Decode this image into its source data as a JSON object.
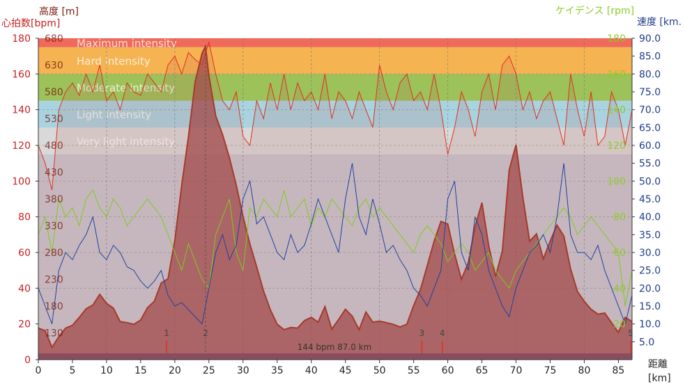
{
  "chart_data": {
    "type": "area",
    "x_axis": {
      "label": "距離",
      "unit": "[km]",
      "range": [
        0,
        87
      ],
      "ticks": [
        "0",
        "5",
        "10",
        "15",
        "20",
        "25",
        "30",
        "35",
        "40",
        "45",
        "50",
        "55",
        "60",
        "65",
        "70",
        "75",
        "80",
        "85"
      ]
    },
    "left_axes": {
      "heart_rate": {
        "label": "心拍数",
        "unit": "[bpm]",
        "range": [
          0,
          180
        ],
        "ticks": [
          "0",
          "20",
          "40",
          "60",
          "80",
          "100",
          "120",
          "140",
          "160",
          "180"
        ]
      },
      "altitude": {
        "label": "高度",
        "unit": "[m]",
        "range": [
          80,
          680
        ],
        "ticks": [
          "130",
          "180",
          "230",
          "280",
          "330",
          "380",
          "430",
          "480",
          "530",
          "580",
          "630",
          "680"
        ]
      }
    },
    "right_axes": {
      "cadence": {
        "label": "ケイデンス",
        "unit": "[rpm]",
        "range": [
          0,
          180
        ],
        "ticks": [
          "20",
          "40",
          "60",
          "80",
          "100",
          "120",
          "140",
          "160",
          "180"
        ]
      },
      "speed": {
        "label": "速度",
        "unit": "[km.",
        "range": [
          0,
          90
        ],
        "ticks": [
          "5.0",
          "10.0",
          "15.0",
          "20.0",
          "25.0",
          "30.0",
          "35.0",
          "40.0",
          "45.0",
          "50.0",
          "55.0",
          "60.0",
          "65.0",
          "70.0",
          "75.0",
          "80.0",
          "85.0",
          "90.0"
        ]
      }
    },
    "zones": [
      {
        "name": "Maximum intensity",
        "from": 175,
        "to": 180,
        "color": "#ef6a5a"
      },
      {
        "name": "Hard intensity",
        "from": 160,
        "to": 175,
        "color": "#f5b352"
      },
      {
        "name": "Moderate intensity",
        "from": 145,
        "to": 160,
        "color": "#9dc25a"
      },
      {
        "name": "Light intensity",
        "from": 130,
        "to": 145,
        "color": "#a9d3df"
      },
      {
        "name": "Very light intensity",
        "from": 115,
        "to": 130,
        "color": "#d9d9d9"
      }
    ],
    "summary": "144 bpm 87.0 km",
    "markers": [
      {
        "label": "1",
        "x": 18.8
      },
      {
        "label": "2",
        "x": 24.5
      },
      {
        "label": "3",
        "x": 56.2
      },
      {
        "label": "4",
        "x": 59.2
      },
      {
        "label": "5",
        "x": 87.0
      }
    ],
    "series": [
      {
        "name": "高度",
        "color": "#a23a2a",
        "x": [
          0,
          1,
          2,
          3,
          4,
          5,
          6,
          7,
          8,
          9,
          10,
          11,
          12,
          13,
          14,
          15,
          16,
          17,
          18,
          19,
          20,
          21,
          22,
          23,
          24,
          24.5,
          25,
          26,
          27,
          28,
          29,
          30,
          31,
          32,
          33,
          34,
          35,
          36,
          37,
          38,
          39,
          40,
          41,
          42,
          43,
          44,
          45,
          46,
          47,
          48,
          49,
          50,
          51,
          52,
          53,
          54,
          55,
          56,
          57,
          58,
          59,
          60,
          61,
          62,
          63,
          64,
          65,
          66,
          67,
          68,
          69,
          70,
          71,
          72,
          73,
          74,
          75,
          76,
          77,
          78,
          79,
          80,
          81,
          82,
          83,
          84,
          85,
          86,
          87
        ],
        "y": [
          139,
          134,
          103,
          123,
          139,
          144,
          159,
          175,
          182,
          202,
          185,
          176,
          151,
          149,
          146,
          154,
          177,
          189,
          223,
          231,
          303,
          405,
          496,
          600,
          652,
          665,
          610,
          535,
          500,
          457,
          406,
          347,
          296,
          253,
          208,
          173,
          146,
          136,
          140,
          139,
          153,
          159,
          150,
          179,
          137,
          155,
          174,
          161,
          136,
          169,
          150,
          152,
          149,
          146,
          141,
          146,
          181,
          211,
          256,
          301,
          338,
          333,
          277,
          230,
          261,
          329,
          373,
          293,
          235,
          283,
          434,
          481,
          383,
          301,
          315,
          268,
          301,
          331,
          311,
          249,
          207,
          189,
          174,
          165,
          167,
          149,
          131,
          159,
          151
        ]
      },
      {
        "name": "心拍数",
        "color": "#e03020",
        "x": [
          0,
          1,
          2,
          3,
          4,
          5,
          6,
          7,
          8,
          9,
          10,
          11,
          12,
          13,
          14,
          15,
          16,
          17,
          18,
          19,
          20,
          21,
          22,
          23,
          24,
          25,
          26,
          27,
          28,
          29,
          30,
          31,
          32,
          33,
          34,
          35,
          36,
          37,
          38,
          39,
          40,
          41,
          42,
          43,
          44,
          45,
          46,
          47,
          48,
          49,
          50,
          51,
          52,
          53,
          54,
          55,
          56,
          57,
          58,
          59,
          60,
          61,
          62,
          63,
          64,
          65,
          66,
          67,
          68,
          69,
          70,
          71,
          72,
          73,
          74,
          75,
          76,
          77,
          78,
          79,
          80,
          81,
          82,
          83,
          84,
          85,
          86,
          87
        ],
        "y": [
          120,
          110,
          95,
          140,
          150,
          155,
          148,
          160,
          150,
          165,
          145,
          150,
          140,
          155,
          150,
          148,
          160,
          155,
          150,
          165,
          170,
          160,
          172,
          168,
          165,
          178,
          160,
          145,
          140,
          150,
          125,
          120,
          145,
          135,
          155,
          140,
          160,
          140,
          155,
          145,
          150,
          140,
          160,
          135,
          150,
          145,
          135,
          150,
          140,
          130,
          165,
          150,
          140,
          155,
          160,
          145,
          150,
          140,
          160,
          140,
          115,
          130,
          150,
          140,
          125,
          150,
          160,
          140,
          165,
          170,
          160,
          140,
          150,
          135,
          145,
          150,
          135,
          120,
          160,
          140,
          125,
          150,
          120,
          125,
          150,
          140,
          120,
          140
        ]
      },
      {
        "name": "ケイデンス",
        "color": "#7ecb20",
        "x": [
          0,
          1,
          2,
          3,
          4,
          5,
          6,
          7,
          8,
          9,
          10,
          11,
          12,
          13,
          14,
          15,
          16,
          17,
          18,
          19,
          20,
          21,
          22,
          23,
          24,
          25,
          26,
          27,
          28,
          29,
          30,
          31,
          32,
          33,
          34,
          35,
          36,
          37,
          38,
          39,
          40,
          41,
          42,
          43,
          44,
          45,
          46,
          47,
          48,
          49,
          50,
          51,
          52,
          53,
          54,
          55,
          56,
          57,
          58,
          59,
          60,
          61,
          62,
          63,
          64,
          65,
          66,
          67,
          68,
          69,
          70,
          71,
          72,
          73,
          74,
          75,
          76,
          77,
          78,
          79,
          80,
          81,
          82,
          83,
          84,
          85,
          86,
          87
        ],
        "y": [
          70,
          80,
          60,
          90,
          80,
          85,
          75,
          90,
          95,
          85,
          80,
          90,
          85,
          75,
          80,
          85,
          90,
          85,
          80,
          70,
          60,
          50,
          65,
          55,
          45,
          40,
          70,
          80,
          90,
          60,
          50,
          85,
          80,
          90,
          85,
          80,
          95,
          80,
          85,
          90,
          75,
          85,
          80,
          90,
          85,
          80,
          75,
          85,
          90,
          80,
          85,
          80,
          75,
          70,
          65,
          60,
          70,
          75,
          70,
          65,
          55,
          60,
          65,
          60,
          50,
          55,
          60,
          50,
          45,
          40,
          50,
          55,
          60,
          65,
          70,
          75,
          80,
          85,
          80,
          70,
          75,
          80,
          75,
          70,
          65,
          60,
          30,
          50
        ]
      },
      {
        "name": "速度",
        "color": "#2040a0",
        "x": [
          0,
          1,
          2,
          3,
          4,
          5,
          6,
          7,
          8,
          9,
          10,
          11,
          12,
          13,
          14,
          15,
          16,
          17,
          18,
          19,
          20,
          21,
          22,
          23,
          24,
          25,
          26,
          27,
          28,
          29,
          30,
          31,
          32,
          33,
          34,
          35,
          36,
          37,
          38,
          39,
          40,
          41,
          42,
          43,
          44,
          45,
          46,
          47,
          48,
          49,
          50,
          51,
          52,
          53,
          54,
          55,
          56,
          57,
          58,
          59,
          60,
          61,
          62,
          63,
          64,
          65,
          66,
          67,
          68,
          69,
          70,
          71,
          72,
          73,
          74,
          75,
          76,
          77,
          78,
          79,
          80,
          81,
          82,
          83,
          84,
          85,
          86,
          87
        ],
        "y": [
          20,
          15,
          10,
          25,
          30,
          28,
          32,
          35,
          40,
          30,
          28,
          32,
          30,
          26,
          25,
          22,
          20,
          22,
          25,
          18,
          15,
          16,
          14,
          12,
          10,
          20,
          30,
          35,
          28,
          32,
          45,
          50,
          38,
          40,
          35,
          30,
          28,
          35,
          30,
          32,
          38,
          45,
          40,
          35,
          30,
          45,
          55,
          40,
          35,
          45,
          38,
          30,
          32,
          28,
          25,
          20,
          18,
          15,
          20,
          25,
          45,
          50,
          30,
          25,
          40,
          35,
          25,
          20,
          15,
          12,
          20,
          25,
          30,
          32,
          35,
          30,
          40,
          55,
          35,
          30,
          30,
          28,
          32,
          25,
          20,
          15,
          10,
          18
        ]
      }
    ]
  },
  "labels": {
    "altitude_title": "高度",
    "altitude_unit": "[m]",
    "hr_title": "心拍数",
    "hr_unit": "[bpm]",
    "cadence_title": "ケイデンス",
    "cadence_unit": "[rpm]",
    "speed_title": "速度",
    "speed_unit": "[km.",
    "distance_title": "距離",
    "distance_unit": "[km]"
  },
  "colors": {
    "hr_axis": "#c82020",
    "altitude_axis": "#7a1a10",
    "cadence_axis": "#8ccc2a",
    "speed_axis": "#203c8c",
    "plot_bg": "#c8c8d0",
    "bottom_bar": "#1f4ab0"
  }
}
